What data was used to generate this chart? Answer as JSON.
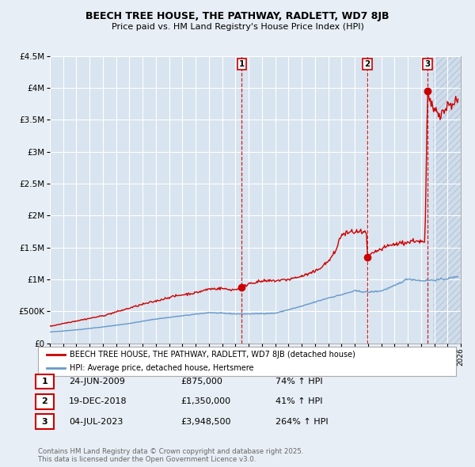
{
  "title": "BEECH TREE HOUSE, THE PATHWAY, RADLETT, WD7 8JB",
  "subtitle": "Price paid vs. HM Land Registry's House Price Index (HPI)",
  "background_color": "#e8eef5",
  "plot_bg_color": "#d8e4ef",
  "sale_color": "#cc0000",
  "hpi_color": "#6699cc",
  "sale_label": "BEECH TREE HOUSE, THE PATHWAY, RADLETT, WD7 8JB (detached house)",
  "hpi_label": "HPI: Average price, detached house, Hertsmere",
  "xlim": [
    1995,
    2026
  ],
  "ylim": [
    0,
    4500000
  ],
  "yticks": [
    0,
    500000,
    1000000,
    1500000,
    2000000,
    2500000,
    3000000,
    3500000,
    4000000,
    4500000
  ],
  "transactions": [
    {
      "id": 1,
      "date": "24-JUN-2009",
      "year": 2009.47,
      "price": 875000,
      "pct": "74%",
      "dir": "↑"
    },
    {
      "id": 2,
      "date": "19-DEC-2018",
      "year": 2018.96,
      "price": 1350000,
      "pct": "41%",
      "dir": "↑"
    },
    {
      "id": 3,
      "date": "04-JUL-2023",
      "year": 2023.5,
      "price": 3948500,
      "pct": "264%",
      "dir": "↑"
    }
  ],
  "footer": "Contains HM Land Registry data © Crown copyright and database right 2025.\nThis data is licensed under the Open Government Licence v3.0.",
  "hatch_color": "#c0cfe0",
  "hatch_start": 2023.9
}
